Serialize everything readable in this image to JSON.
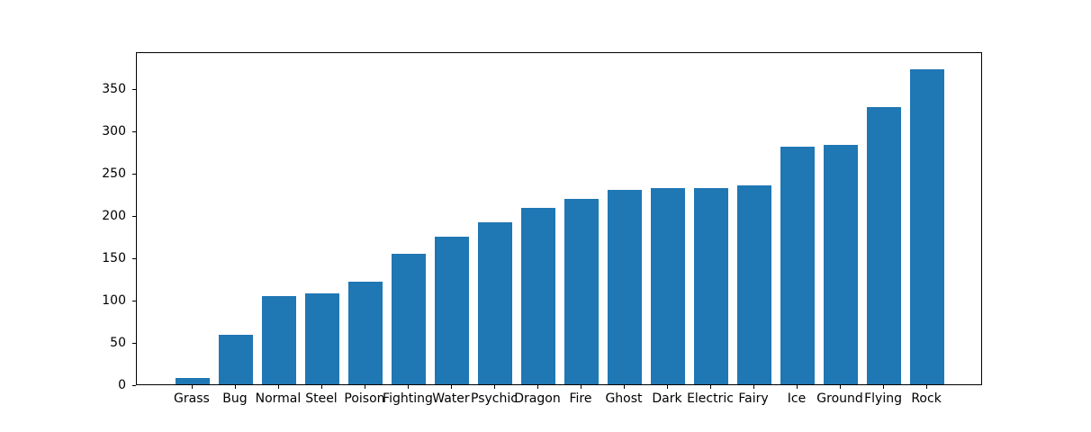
{
  "chart_data": {
    "type": "bar",
    "categories": [
      "Grass",
      "Bug",
      "Normal",
      "Steel",
      "Poison",
      "Fighting",
      "Water",
      "Psychic",
      "Dragon",
      "Fire",
      "Ghost",
      "Dark",
      "Electric",
      "Fairy",
      "Ice",
      "Ground",
      "Flying",
      "Rock"
    ],
    "values": [
      8,
      59,
      105,
      108,
      122,
      155,
      176,
      193,
      210,
      220,
      231,
      233,
      233,
      237,
      282,
      285,
      330,
      375
    ],
    "title": "",
    "xlabel": "",
    "ylabel": "",
    "yticks": [
      0,
      50,
      100,
      150,
      200,
      250,
      300,
      350
    ],
    "ylim": [
      0,
      393.75
    ],
    "bar_width_fraction": 0.8,
    "bar_color": "#1f77b4",
    "axis_color": "#000000",
    "background_color": "#ffffff",
    "grid": false,
    "legend": null
  }
}
